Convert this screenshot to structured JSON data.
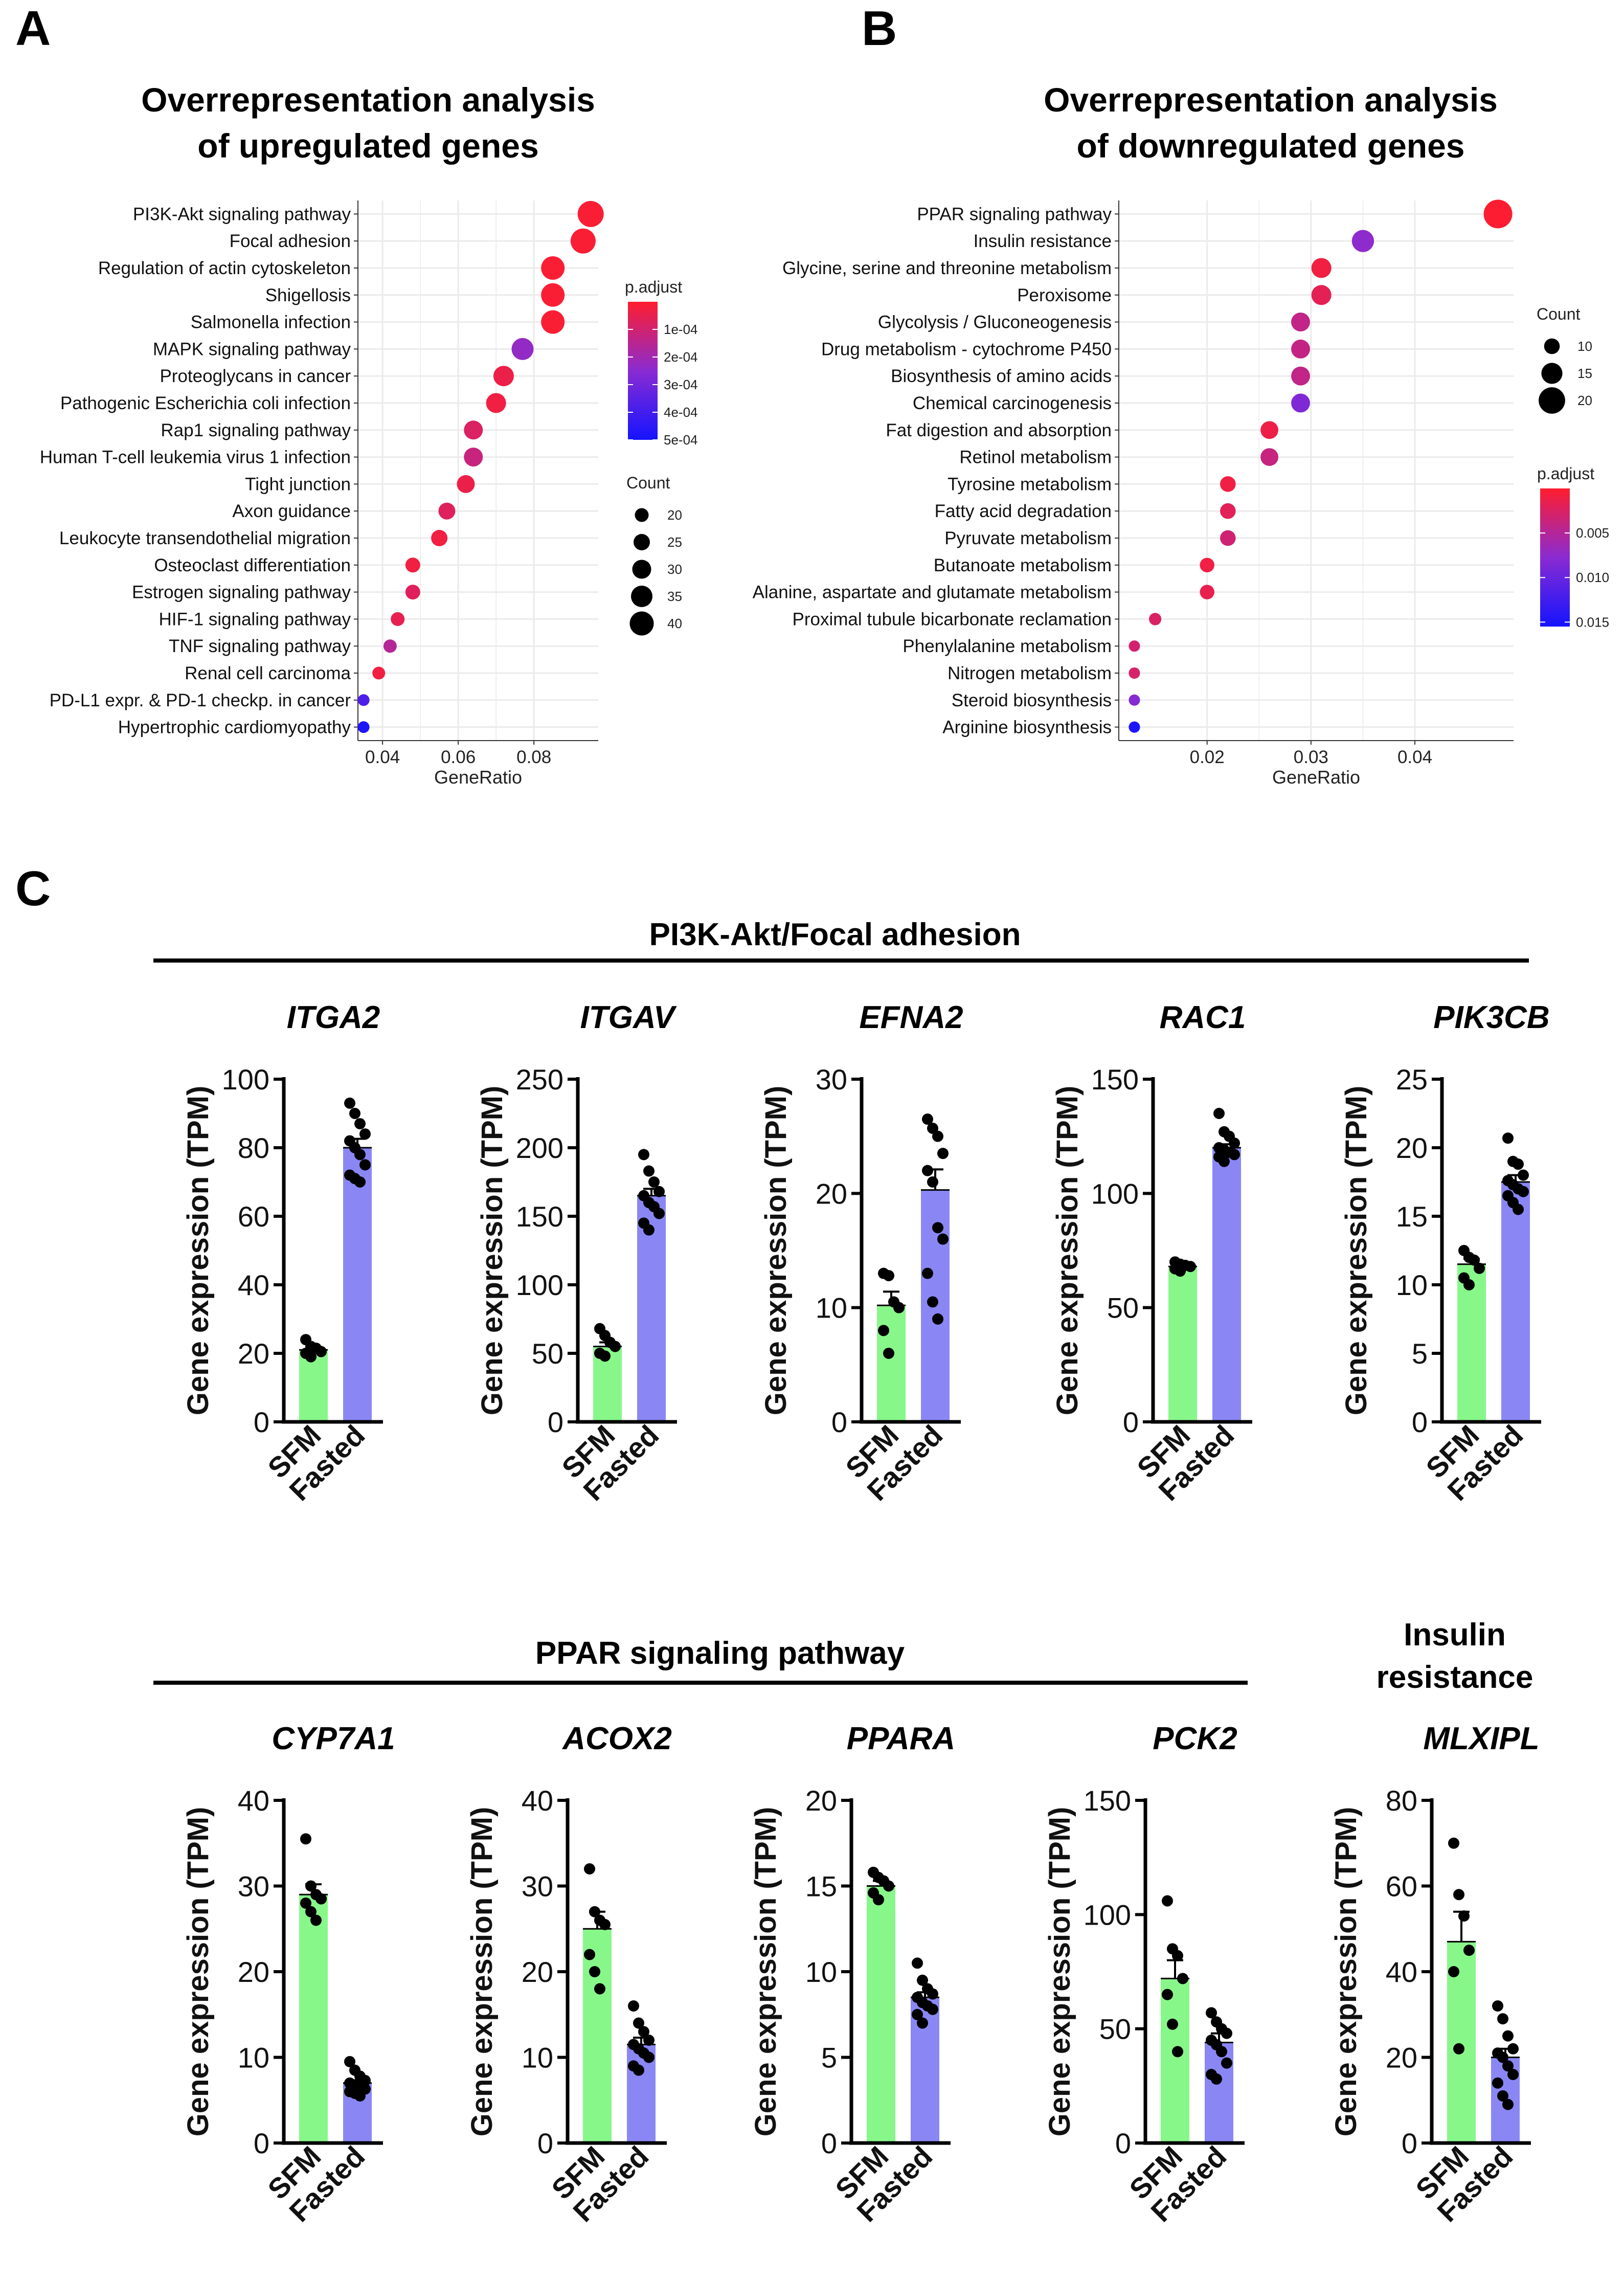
{
  "panels": {
    "a": {
      "letter": "A",
      "title_line1": "Overrepresentation analysis",
      "title_line2": "of upregulated genes"
    },
    "b": {
      "letter": "B",
      "title_line1": "Overrepresentation analysis",
      "title_line2": "of downregulated genes"
    },
    "c": {
      "letter": "C",
      "section1": "PI3K-Akt/Focal adhesion",
      "section2": "PPAR signaling pathway",
      "section3_line1": "Insulin",
      "section3_line2": "resistance"
    }
  },
  "colors": {
    "low_padj": "#ff1d2e",
    "mid_padj": "#8a2bd2",
    "high_padj": "#1414ff",
    "sfm_bar": "#88f78a",
    "fasted_bar": "#8a87f5",
    "dot": "#000000",
    "grid": "#ebebeb"
  },
  "chart_data": [
    {
      "id": "dotA",
      "type": "scatter",
      "subtype": "dotplot",
      "xlabel": "GeneRatio",
      "xlim": [
        0.0335,
        0.097
      ],
      "xticks": [
        0.04,
        0.06,
        0.08
      ],
      "xtick_labels": [
        "0.04",
        "0.06",
        "0.08"
      ],
      "size_legend": {
        "title": "Count",
        "values": [
          20,
          25,
          30,
          35,
          40
        ],
        "labels": [
          "20",
          "25",
          "30",
          "35",
          "40"
        ],
        "range": [
          15,
          45
        ]
      },
      "color_legend": {
        "title": "p.adjust",
        "min": 0,
        "max": 0.0005,
        "ticks": [
          0.0001,
          0.0002,
          0.0003,
          0.0004,
          0.0005
        ],
        "labels": [
          "1e-04",
          "2e-04",
          "3e-04",
          "4e-04",
          "5e-04"
        ]
      },
      "terms": [
        {
          "label": "PI3K-Akt signaling pathway",
          "x": 0.095,
          "count": 44,
          "padj": 1e-05
        },
        {
          "label": "Focal adhesion",
          "x": 0.093,
          "count": 42,
          "padj": 1e-05
        },
        {
          "label": "Regulation of actin cytoskeleton",
          "x": 0.085,
          "count": 39,
          "padj": 1e-05
        },
        {
          "label": "Shigellosis",
          "x": 0.085,
          "count": 39,
          "padj": 1e-05
        },
        {
          "label": "Salmonella infection",
          "x": 0.085,
          "count": 39,
          "padj": 1e-05
        },
        {
          "label": "MAPK signaling pathway",
          "x": 0.077,
          "count": 36,
          "padj": 0.00023
        },
        {
          "label": "Proteoglycans in cancer",
          "x": 0.072,
          "count": 33,
          "padj": 4e-05
        },
        {
          "label": "Pathogenic Escherichia coli infection",
          "x": 0.07,
          "count": 32,
          "padj": 3e-05
        },
        {
          "label": "Rap1 signaling pathway",
          "x": 0.064,
          "count": 30,
          "padj": 8e-05
        },
        {
          "label": "Human T-cell leukemia virus 1 infection",
          "x": 0.064,
          "count": 30,
          "padj": 0.00012
        },
        {
          "label": "Tight junction",
          "x": 0.062,
          "count": 28,
          "padj": 4e-05
        },
        {
          "label": "Axon guidance",
          "x": 0.057,
          "count": 26,
          "padj": 7e-05
        },
        {
          "label": "Leukocyte transendothelial migration",
          "x": 0.055,
          "count": 25,
          "padj": 3e-05
        },
        {
          "label": "Osteoclast differentiation",
          "x": 0.048,
          "count": 22,
          "padj": 3e-05
        },
        {
          "label": "Estrogen signaling pathway",
          "x": 0.048,
          "count": 22,
          "padj": 7e-05
        },
        {
          "label": "HIF-1 signaling pathway",
          "x": 0.044,
          "count": 20,
          "padj": 5e-05
        },
        {
          "label": "TNF signaling pathway",
          "x": 0.042,
          "count": 19,
          "padj": 0.00016
        },
        {
          "label": "Renal cell carcinoma",
          "x": 0.039,
          "count": 18,
          "padj": 3e-05
        },
        {
          "label": "PD-L1 expr. & PD-1 checkp. in cancer",
          "x": 0.035,
          "count": 16,
          "padj": 0.00038
        },
        {
          "label": "Hypertrophic cardiomyopathy",
          "x": 0.035,
          "count": 16,
          "padj": 0.00048
        }
      ]
    },
    {
      "id": "dotB",
      "type": "scatter",
      "subtype": "dotplot",
      "xlabel": "GeneRatio",
      "xlim": [
        0.0115,
        0.0495
      ],
      "xticks": [
        0.02,
        0.03,
        0.04
      ],
      "xtick_labels": [
        "0.02",
        "0.03",
        "0.04"
      ],
      "size_legend": {
        "title": "Count",
        "values": [
          10,
          15,
          20
        ],
        "labels": [
          "10",
          "15",
          "20"
        ],
        "range": [
          5,
          22
        ]
      },
      "color_legend": {
        "title": "p.adjust",
        "min": 0,
        "max": 0.0155,
        "ticks": [
          0.005,
          0.01,
          0.015
        ],
        "labels": [
          "0.005",
          "0.010",
          "0.015"
        ]
      },
      "terms": [
        {
          "label": "PPAR signaling pathway",
          "x": 0.048,
          "count": 22,
          "padj": 0.0002
        },
        {
          "label": "Insulin resistance",
          "x": 0.035,
          "count": 16,
          "padj": 0.0075
        },
        {
          "label": "Glycine, serine and threonine metabolism",
          "x": 0.031,
          "count": 14,
          "padj": 0.0009
        },
        {
          "label": "Peroxisome",
          "x": 0.031,
          "count": 14,
          "padj": 0.0018
        },
        {
          "label": "Glycolysis / Gluconeogenesis",
          "x": 0.029,
          "count": 13,
          "padj": 0.0042
        },
        {
          "label": "Drug metabolism - cytochrome P450",
          "x": 0.029,
          "count": 13,
          "padj": 0.004
        },
        {
          "label": "Biosynthesis of amino acids",
          "x": 0.029,
          "count": 13,
          "padj": 0.0042
        },
        {
          "label": "Chemical carcinogenesis",
          "x": 0.029,
          "count": 13,
          "padj": 0.0085
        },
        {
          "label": "Fat digestion and absorption",
          "x": 0.026,
          "count": 12,
          "padj": 0.0012
        },
        {
          "label": "Retinol metabolism",
          "x": 0.026,
          "count": 12,
          "padj": 0.0038
        },
        {
          "label": "Tyrosine metabolism",
          "x": 0.022,
          "count": 10,
          "padj": 0.001
        },
        {
          "label": "Fatty acid degradation",
          "x": 0.022,
          "count": 10,
          "padj": 0.002
        },
        {
          "label": "Pyruvate metabolism",
          "x": 0.022,
          "count": 10,
          "padj": 0.0032
        },
        {
          "label": "Butanoate metabolism",
          "x": 0.02,
          "count": 9,
          "padj": 0.001
        },
        {
          "label": "Alanine, aspartate and glutamate metabolism",
          "x": 0.02,
          "count": 9,
          "padj": 0.0015
        },
        {
          "label": "Proximal tubule bicarbonate reclamation",
          "x": 0.015,
          "count": 7,
          "padj": 0.0025
        },
        {
          "label": "Phenylalanine metabolism",
          "x": 0.013,
          "count": 6,
          "padj": 0.003
        },
        {
          "label": "Nitrogen metabolism",
          "x": 0.013,
          "count": 6,
          "padj": 0.0028
        },
        {
          "label": "Steroid biosynthesis",
          "x": 0.013,
          "count": 6,
          "padj": 0.008
        },
        {
          "label": "Arginine biosynthesis",
          "x": 0.013,
          "count": 6,
          "padj": 0.015
        }
      ]
    },
    {
      "id": "ITGA2",
      "type": "bar",
      "gene": "ITGA2",
      "ylabel": "Gene expression (TPM)",
      "categories": [
        "SFM",
        "Fasted"
      ],
      "values": [
        21,
        80
      ],
      "sem": [
        0.9,
        2.6
      ],
      "ylim": [
        0,
        100
      ],
      "yticks": [
        0,
        20,
        40,
        60,
        80,
        100
      ],
      "ytick_labels": [
        "0",
        "20",
        "40",
        "60",
        "80",
        "100"
      ],
      "points": [
        [
          24,
          22,
          21.5,
          20.5,
          20,
          19
        ],
        [
          93,
          90,
          87,
          84,
          82,
          80,
          78,
          75,
          72,
          71,
          70
        ]
      ]
    },
    {
      "id": "ITGAV",
      "type": "bar",
      "gene": "ITGAV",
      "ylabel": "Gene expression (TPM)",
      "categories": [
        "SFM",
        "Fasted"
      ],
      "values": [
        55,
        165
      ],
      "sem": [
        3,
        5
      ],
      "ylim": [
        0,
        250
      ],
      "yticks": [
        0,
        50,
        100,
        150,
        200,
        250
      ],
      "ytick_labels": [
        "0",
        "50",
        "100",
        "150",
        "200",
        "250"
      ],
      "points": [
        [
          68,
          63,
          58,
          55,
          50,
          48
        ],
        [
          195,
          183,
          175,
          168,
          165,
          160,
          157,
          152,
          145,
          140
        ]
      ]
    },
    {
      "id": "EFNA2",
      "type": "bar",
      "gene": "EFNA2",
      "ylabel": "Gene expression (TPM)",
      "categories": [
        "SFM",
        "Fasted"
      ],
      "values": [
        10.2,
        20.3
      ],
      "sem": [
        1.2,
        1.8
      ],
      "ylim": [
        0,
        30
      ],
      "yticks": [
        0,
        10,
        20,
        30
      ],
      "ytick_labels": [
        "0",
        "10",
        "20",
        "30"
      ],
      "points": [
        [
          13,
          12.8,
          10.5,
          10,
          8,
          6
        ],
        [
          26.5,
          25.7,
          25,
          23.5,
          22,
          21,
          17,
          16,
          13,
          10.5,
          9
        ]
      ]
    },
    {
      "id": "RAC1",
      "type": "bar",
      "gene": "RAC1",
      "ylabel": "Gene expression (TPM)",
      "categories": [
        "SFM",
        "Fasted"
      ],
      "values": [
        68,
        120
      ],
      "sem": [
        1,
        1.5
      ],
      "ylim": [
        0,
        150
      ],
      "yticks": [
        0,
        50,
        100,
        150
      ],
      "ytick_labels": [
        "0",
        "50",
        "100",
        "150"
      ],
      "points": [
        [
          70,
          69,
          68.5,
          68,
          67,
          66
        ],
        [
          135,
          127,
          125,
          122,
          120,
          119,
          118,
          117,
          116,
          114
        ]
      ]
    },
    {
      "id": "PIK3CB",
      "type": "bar",
      "gene": "PIK3CB",
      "ylabel": "Gene expression (TPM)",
      "categories": [
        "SFM",
        "Fasted"
      ],
      "values": [
        11.5,
        17.5
      ],
      "sem": [
        0.4,
        0.5
      ],
      "ylim": [
        0,
        25
      ],
      "yticks": [
        0,
        5,
        10,
        15,
        20,
        25
      ],
      "ytick_labels": [
        "0",
        "5",
        "10",
        "15",
        "20",
        "25"
      ],
      "points": [
        [
          12.5,
          12,
          11.8,
          11.2,
          10.5,
          10
        ],
        [
          20.7,
          19,
          18.8,
          18,
          17.6,
          17.3,
          17,
          16.8,
          16.5,
          16,
          15.5
        ]
      ]
    },
    {
      "id": "CYP7A1",
      "type": "bar",
      "gene": "CYP7A1",
      "ylabel": "Gene expression (TPM)",
      "categories": [
        "SFM",
        "Fasted"
      ],
      "values": [
        29,
        7
      ],
      "sem": [
        1.2,
        0.3
      ],
      "ylim": [
        0,
        40
      ],
      "yticks": [
        0,
        10,
        20,
        30,
        40
      ],
      "ytick_labels": [
        "0",
        "10",
        "20",
        "30",
        "40"
      ],
      "points": [
        [
          35.5,
          30,
          29,
          28.5,
          28,
          27,
          26
        ],
        [
          9.5,
          8.5,
          7.8,
          7.3,
          7,
          6.8,
          6.5,
          6.3,
          6,
          5.8,
          5.5
        ]
      ]
    },
    {
      "id": "ACOX2",
      "type": "bar",
      "gene": "ACOX2",
      "ylabel": "Gene expression (TPM)",
      "categories": [
        "SFM",
        "Fasted"
      ],
      "values": [
        25,
        11.5
      ],
      "sem": [
        2,
        0.8
      ],
      "ylim": [
        0,
        40
      ],
      "yticks": [
        0,
        10,
        20,
        30,
        40
      ],
      "ytick_labels": [
        "0",
        "10",
        "20",
        "30",
        "40"
      ],
      "points": [
        [
          32,
          27,
          26,
          25.5,
          22,
          20,
          18
        ],
        [
          16,
          14,
          13,
          12,
          11.5,
          11,
          10.5,
          10,
          9,
          8.5
        ]
      ]
    },
    {
      "id": "PPARA",
      "type": "bar",
      "gene": "PPARA",
      "ylabel": "Gene expression (TPM)",
      "categories": [
        "SFM",
        "Fasted"
      ],
      "values": [
        15,
        8.5
      ],
      "sem": [
        0.3,
        0.3
      ],
      "ylim": [
        0,
        20
      ],
      "yticks": [
        0,
        5,
        10,
        15,
        20
      ],
      "ytick_labels": [
        "0",
        "5",
        "10",
        "15",
        "20"
      ],
      "points": [
        [
          15.8,
          15.5,
          15.3,
          15,
          14.6,
          14.2
        ],
        [
          10.5,
          9.5,
          9,
          8.7,
          8.5,
          8.2,
          8,
          7.8,
          7.5,
          7
        ]
      ]
    },
    {
      "id": "PCK2",
      "type": "bar",
      "gene": "PCK2",
      "ylabel": "Gene expression (TPM)",
      "categories": [
        "SFM",
        "Fasted"
      ],
      "values": [
        72,
        44
      ],
      "sem": [
        8,
        4
      ],
      "ylim": [
        0,
        150
      ],
      "yticks": [
        0,
        50,
        100,
        150
      ],
      "ytick_labels": [
        "0",
        "50",
        "100",
        "150"
      ],
      "points": [
        [
          106,
          85,
          82,
          72,
          65,
          52,
          40
        ],
        [
          57,
          53,
          50,
          48,
          45,
          43,
          40,
          35,
          30,
          28
        ]
      ]
    },
    {
      "id": "MLXIPL",
      "type": "bar",
      "gene": "MLXIPL",
      "ylabel": "Gene expression (TPM)",
      "categories": [
        "SFM",
        "Fasted"
      ],
      "values": [
        47,
        20
      ],
      "sem": [
        7,
        2
      ],
      "ylim": [
        0,
        80
      ],
      "yticks": [
        0,
        20,
        40,
        60,
        80
      ],
      "ytick_labels": [
        "0",
        "20",
        "40",
        "60",
        "80"
      ],
      "points": [
        [
          70,
          58,
          53,
          45,
          40,
          22
        ],
        [
          32,
          29,
          25,
          22,
          21,
          20,
          18,
          16,
          14,
          11,
          9
        ]
      ]
    }
  ]
}
